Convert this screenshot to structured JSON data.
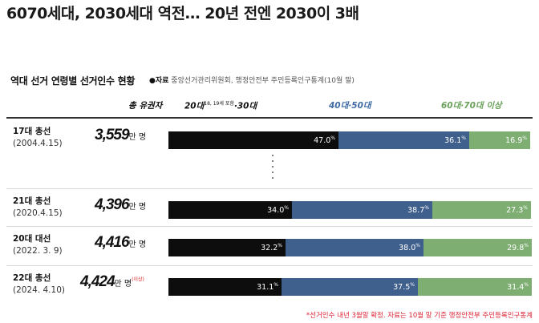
{
  "headline": "6070세대, 2030세대 역전… 20년 전엔 2030이 3배",
  "chart_title": "역대 선거 연령별 선거인수 현황",
  "source_label": "●자료",
  "source_text": "중앙선거관리위원회, 행정안전부 주민등록인구통계(10월 말)",
  "footnote": "*선거인수 내년 3월말 확정. 자료는 10월 말 기준 행정안전부 주민등록인구통계",
  "columns": {
    "total": "총 유권자",
    "young_main": "20대",
    "young_sup": "18, 19세 포함",
    "young_tail": "·30대",
    "middle": "40대·50대",
    "old": "60대·70대 이상"
  },
  "colors": {
    "young": "#0d0d0d",
    "middle": "#3f5f8d",
    "old": "#7fae72",
    "middle_label": "#3e6aa5",
    "old_label": "#6aa05a"
  },
  "chart_data": {
    "type": "bar",
    "stacked": "horizontal-100%",
    "title": "역대 선거 연령별 선거인수 현황",
    "categories": [
      "17대 총선 (2004.4.15)",
      "21대 총선 (2020.4.15)",
      "20대 대선 (2022. 3. 9)",
      "22대 총선 (2024. 4.10)"
    ],
    "series": [
      {
        "name": "20대·30대",
        "values": [
          47.0,
          34.0,
          32.2,
          31.1
        ]
      },
      {
        "name": "40대·50대",
        "values": [
          36.1,
          38.7,
          38.0,
          37.5
        ]
      },
      {
        "name": "60대·70대 이상",
        "values": [
          16.9,
          27.3,
          29.8,
          31.4
        ]
      }
    ],
    "total_voters_man": [
      3559,
      4396,
      4416,
      4424
    ],
    "unit_pct": "%",
    "unit_voters": "만 명"
  },
  "rows": [
    {
      "name": "17대 총선",
      "date": "(2004.4.15)",
      "voters": "3,559",
      "unit": "만 명",
      "note": "",
      "p1": "47.0",
      "p2": "36.1",
      "p3": "16.9"
    },
    {
      "name": "21대 총선",
      "date": "(2020.4.15)",
      "voters": "4,396",
      "unit": "만 명",
      "note": "",
      "p1": "34.0",
      "p2": "38.7",
      "p3": "27.3"
    },
    {
      "name": "20대 대선",
      "date": "(2022. 3. 9)",
      "voters": "4,416",
      "unit": "만 명",
      "note": "",
      "p1": "32.2",
      "p2": "38.0",
      "p3": "29.8"
    },
    {
      "name": "22대 총선",
      "date": "(2024. 4.10)",
      "voters": "4,424",
      "unit": "만 명",
      "note": "(이상)",
      "p1": "31.1",
      "p2": "37.5",
      "p3": "31.4"
    }
  ]
}
